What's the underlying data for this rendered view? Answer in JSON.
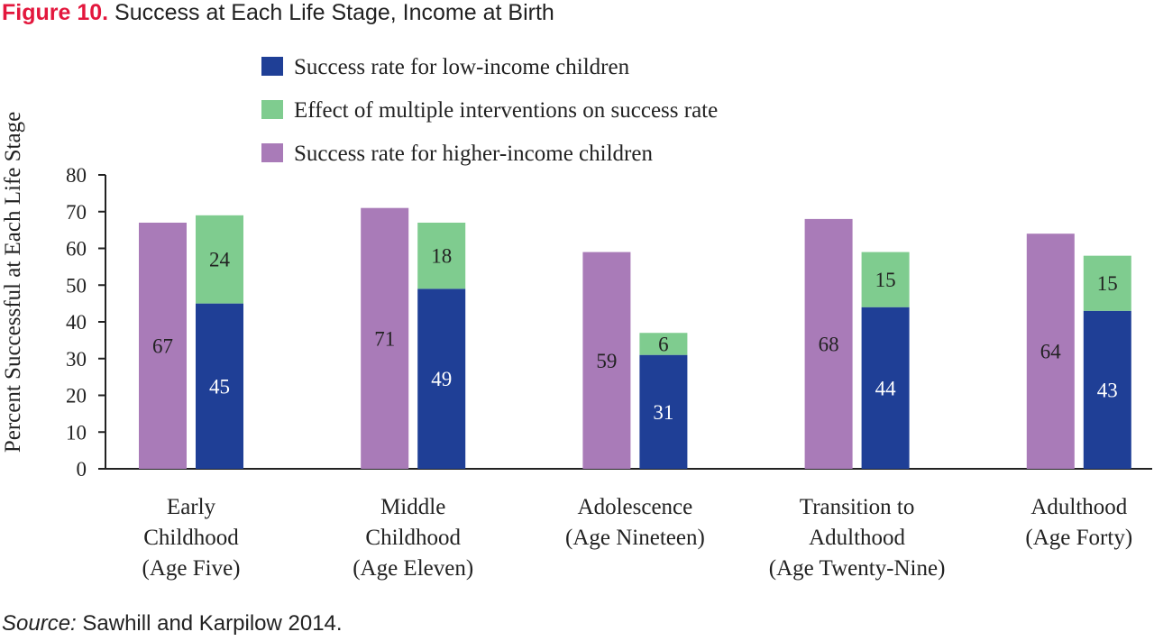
{
  "figure": {
    "label": "Figure 10.",
    "title": "Success at Each Life Stage, Income at Birth"
  },
  "source": {
    "label": "Source:",
    "text": "Sawhill and Karpilow 2014."
  },
  "colors": {
    "low_income": "#1f3f96",
    "interventions": "#7fcc8f",
    "higher_income": "#a97bb8",
    "axis": "#222222"
  },
  "chart_data": {
    "type": "bar",
    "ylabel": "Percent  Successful at Each Life Stage",
    "xlabel": "",
    "ylim": [
      0,
      80
    ],
    "yticks": [
      0,
      10,
      20,
      30,
      40,
      50,
      60,
      70,
      80
    ],
    "grid": false,
    "legend_position": "top",
    "legend": [
      {
        "key": "low_income",
        "label": "Success rate for low-income children"
      },
      {
        "key": "interventions",
        "label": "Effect of multiple interventions on success rate"
      },
      {
        "key": "higher_income",
        "label": "Success rate for higher-income children"
      }
    ],
    "categories": [
      [
        "Early",
        "Childhood",
        "(Age Five)"
      ],
      [
        "Middle",
        "Childhood",
        "(Age Eleven)"
      ],
      [
        "Adolescence",
        "(Age Nineteen)"
      ],
      [
        "Transition to",
        "Adulthood",
        "(Age Twenty-Nine)"
      ],
      [
        "Adulthood",
        "(Age Forty)"
      ]
    ],
    "series": [
      {
        "name": "Success rate for higher-income children",
        "key": "higher_income",
        "values": [
          67,
          71,
          59,
          68,
          64
        ]
      },
      {
        "name": "Success rate for low-income children",
        "key": "low_income",
        "values": [
          45,
          49,
          31,
          44,
          43
        ]
      },
      {
        "name": "Effect of multiple interventions on success rate",
        "key": "interventions",
        "values": [
          24,
          18,
          6,
          15,
          15
        ]
      }
    ]
  }
}
